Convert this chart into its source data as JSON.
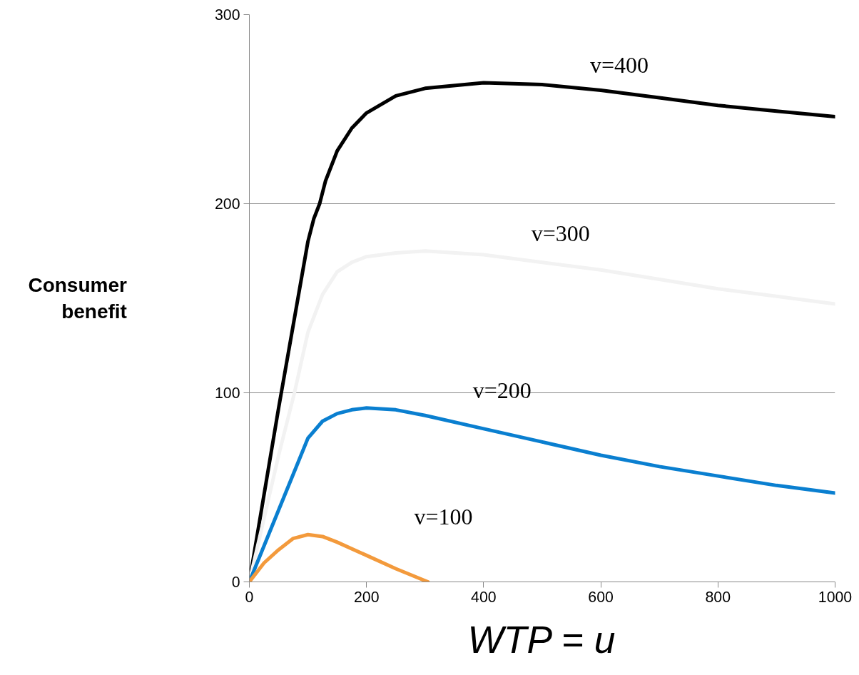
{
  "chart_data": {
    "type": "line",
    "xlabel": "WTP = u",
    "ylabel": "Consumer benefit",
    "xlim": [
      0,
      1000
    ],
    "ylim": [
      0,
      300
    ],
    "xticks": [
      0,
      200,
      400,
      600,
      800,
      1000
    ],
    "yticks": [
      0,
      100,
      200,
      300
    ],
    "grid": "y",
    "marker": "none",
    "line_style": "solid",
    "series": [
      {
        "name": "v=400",
        "color": "#000000",
        "x": [
          0,
          50,
          100,
          110,
          120,
          130,
          150,
          175,
          200,
          250,
          300,
          400,
          500,
          600,
          700,
          800,
          900,
          1000
        ],
        "values": [
          0,
          92,
          180,
          192,
          200,
          212,
          228,
          240,
          248,
          257,
          261,
          264,
          263,
          260,
          256,
          252,
          249,
          246
        ]
      },
      {
        "name": "v=300",
        "color": "#f2f2f2",
        "x": [
          0,
          50,
          77,
          100,
          125,
          150,
          175,
          200,
          250,
          300,
          400,
          500,
          600,
          700,
          800,
          900,
          1000
        ],
        "values": [
          0,
          67,
          100,
          132,
          152,
          164,
          169,
          172,
          174,
          175,
          173,
          169,
          165,
          160,
          155,
          151,
          147
        ]
      },
      {
        "name": "v=200",
        "color": "#0a7fd0",
        "x": [
          0,
          50,
          75,
          100,
          125,
          150,
          175,
          200,
          250,
          300,
          400,
          500,
          600,
          700,
          800,
          900,
          1000
        ],
        "values": [
          0,
          38,
          57,
          76,
          85,
          89,
          91,
          92,
          91,
          88,
          81,
          74,
          67,
          61,
          56,
          51,
          47
        ]
      },
      {
        "name": "v=100",
        "color": "#f39a3c",
        "x": [
          0,
          25,
          50,
          75,
          100,
          125,
          150,
          200,
          250,
          305
        ],
        "values": [
          0,
          10,
          17,
          23,
          25,
          24,
          21,
          14,
          7,
          0
        ]
      }
    ]
  }
}
